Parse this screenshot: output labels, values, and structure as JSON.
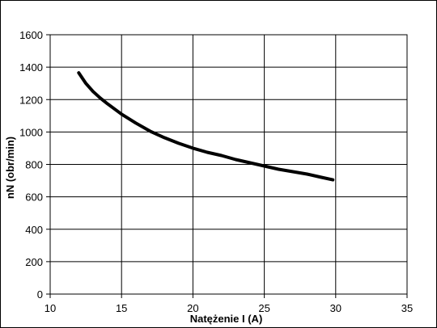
{
  "chart_data": {
    "type": "line",
    "title": "",
    "xlabel": "Natężenie I (A)",
    "ylabel": "nN (obr/min)",
    "xlim": [
      10,
      35
    ],
    "ylim": [
      0,
      1600
    ],
    "x_ticks": [
      "10",
      "15",
      "20",
      "25",
      "30",
      "35"
    ],
    "y_ticks": [
      "0",
      "200",
      "400",
      "600",
      "800",
      "1000",
      "1200",
      "1400",
      "1600"
    ],
    "grid": true,
    "legend": "none",
    "series": [
      {
        "color": "#000000",
        "x": [
          12.0,
          12.5,
          13,
          13.5,
          14,
          15,
          16,
          17,
          18,
          19,
          20,
          21,
          22,
          23,
          24,
          25,
          26,
          27,
          28,
          29,
          29.8
        ],
        "y": [
          1365,
          1300,
          1250,
          1210,
          1175,
          1110,
          1055,
          1005,
          965,
          930,
          900,
          875,
          855,
          830,
          810,
          790,
          770,
          755,
          740,
          720,
          705
        ]
      }
    ]
  }
}
